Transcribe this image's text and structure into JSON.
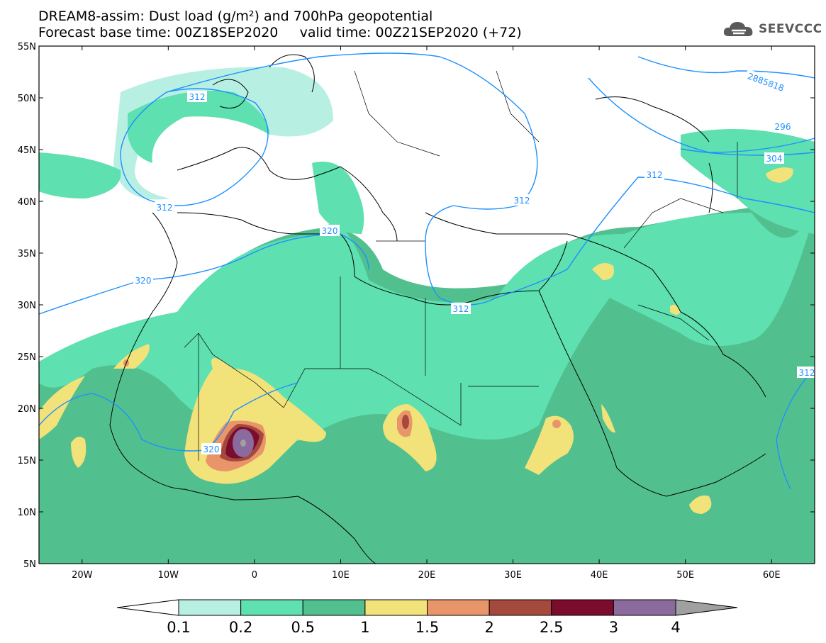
{
  "title": {
    "line1": "DREAM8-assim: Dust load (g/m²) and 700hPa geopotential",
    "line2": "Forecast base time: 00Z18SEP2020     valid time: 00Z21SEP2020 (+72)"
  },
  "logo": {
    "text": "SEEVCCC",
    "icon": "cloud-icon"
  },
  "axes": {
    "lat_labels": [
      "55N",
      "50N",
      "45N",
      "40N",
      "35N",
      "30N",
      "25N",
      "20N",
      "15N",
      "10N",
      "5N"
    ],
    "lon_labels": [
      "20W",
      "10W",
      "0",
      "10E",
      "20E",
      "30E",
      "40E",
      "50E",
      "60E"
    ],
    "lat_range": [
      5,
      55
    ],
    "lon_range": [
      -25,
      65
    ]
  },
  "contours": {
    "labels": [
      "312",
      "312",
      "320",
      "320",
      "320",
      "312",
      "312",
      "312",
      "296",
      "304",
      "2885818",
      "312"
    ],
    "line_color": "#1e90ff"
  },
  "colorbar": {
    "ticks": [
      "0.1",
      "0.2",
      "0.5",
      "1",
      "1.5",
      "2",
      "2.5",
      "3",
      "4"
    ],
    "colors": [
      "#ffffff",
      "#b8efe3",
      "#5ee0b0",
      "#52c08e",
      "#f2e27a",
      "#e8956a",
      "#a6493d",
      "#7b0c2e",
      "#8b6b9e",
      "#a0a0a0"
    ]
  }
}
